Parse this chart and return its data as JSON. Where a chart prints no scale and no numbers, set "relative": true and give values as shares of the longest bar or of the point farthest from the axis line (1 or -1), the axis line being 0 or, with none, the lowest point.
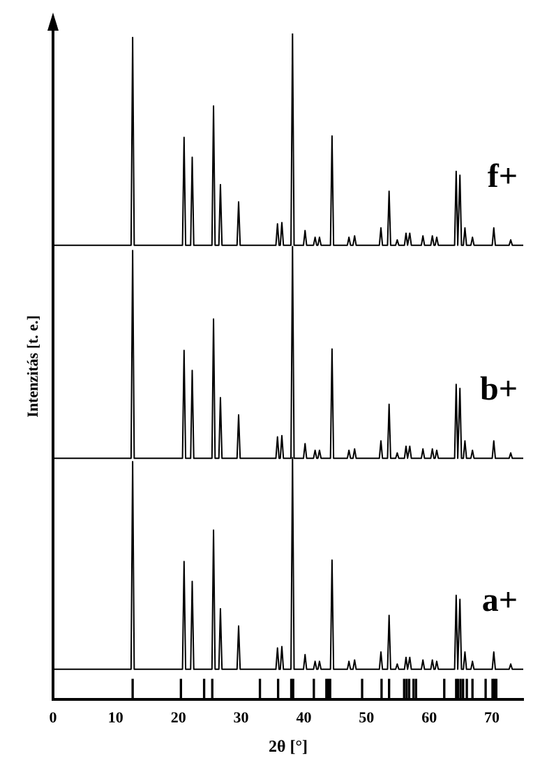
{
  "chart_data": {
    "type": "line",
    "relative": true,
    "xlabel": "2θ [°]",
    "ylabel": "Intenzitás [t. e.]",
    "xlim": [
      0,
      75
    ],
    "xticks": [
      0,
      10,
      20,
      30,
      40,
      50,
      60,
      70
    ],
    "grid": false,
    "legend": false,
    "marker": "none",
    "line_style": "solid",
    "x": [
      0,
      12.45,
      12.7,
      12.95,
      20.65,
      20.9,
      21.15,
      21.95,
      22.2,
      22.45,
      25.35,
      25.6,
      25.85,
      26.45,
      26.7,
      26.95,
      29.35,
      29.6,
      29.85,
      35.55,
      35.8,
      36.05,
      36.25,
      36.5,
      36.75,
      37.95,
      38.2,
      38.45,
      39.95,
      40.2,
      40.45,
      41.55,
      41.8,
      42.05,
      42.25,
      42.5,
      42.75,
      44.25,
      44.5,
      44.75,
      46.95,
      47.2,
      47.45,
      47.85,
      48.1,
      48.35,
      52.05,
      52.3,
      52.55,
      53.35,
      53.6,
      53.85,
      54.65,
      54.9,
      55.15,
      56.05,
      56.3,
      56.55,
      56.65,
      56.9,
      57.15,
      58.75,
      59,
      59.25,
      60.25,
      60.5,
      60.75,
      60.95,
      61.2,
      61.45,
      64.05,
      64.3,
      64.55,
      64.65,
      64.9,
      65.15,
      65.45,
      65.7,
      65.95,
      66.65,
      66.9,
      67.15,
      70.05,
      70.3,
      70.55,
      72.75,
      73,
      73.25,
      75
    ],
    "series": [
      {
        "name": "a+",
        "color": "#000000",
        "values": [
          0.045,
          0.045,
          0.357,
          0.045,
          0.045,
          0.207,
          0.045,
          0.045,
          0.177,
          0.045,
          0.045,
          0.254,
          0.045,
          0.045,
          0.136,
          0.045,
          0.045,
          0.11,
          0.045,
          0.045,
          0.077,
          0.045,
          0.045,
          0.079,
          0.045,
          0.045,
          0.363,
          0.045,
          0.045,
          0.067,
          0.045,
          0.045,
          0.057,
          0.045,
          0.045,
          0.057,
          0.045,
          0.045,
          0.209,
          0.045,
          0.045,
          0.057,
          0.045,
          0.045,
          0.059,
          0.045,
          0.045,
          0.071,
          0.045,
          0.045,
          0.126,
          0.045,
          0.045,
          0.053,
          0.045,
          0.045,
          0.063,
          0.045,
          0.045,
          0.063,
          0.045,
          0.045,
          0.059,
          0.045,
          0.045,
          0.059,
          0.045,
          0.045,
          0.057,
          0.045,
          0.045,
          0.156,
          0.045,
          0.045,
          0.15,
          0.045,
          0.045,
          0.071,
          0.045,
          0.045,
          0.057,
          0.045,
          0.045,
          0.071,
          0.045,
          0.045,
          0.053,
          0.045,
          0.045
        ]
      },
      {
        "name": "b+",
        "color": "#000000",
        "values": [
          0.362,
          0.362,
          0.674,
          0.362,
          0.362,
          0.524,
          0.362,
          0.362,
          0.494,
          0.362,
          0.362,
          0.571,
          0.362,
          0.362,
          0.453,
          0.362,
          0.362,
          0.427,
          0.362,
          0.362,
          0.394,
          0.362,
          0.362,
          0.396,
          0.362,
          0.362,
          0.68,
          0.362,
          0.362,
          0.384,
          0.362,
          0.362,
          0.374,
          0.362,
          0.362,
          0.374,
          0.362,
          0.362,
          0.526,
          0.362,
          0.362,
          0.374,
          0.362,
          0.362,
          0.376,
          0.362,
          0.362,
          0.388,
          0.362,
          0.362,
          0.443,
          0.362,
          0.362,
          0.37,
          0.362,
          0.362,
          0.38,
          0.362,
          0.362,
          0.38,
          0.362,
          0.362,
          0.376,
          0.362,
          0.362,
          0.376,
          0.362,
          0.362,
          0.374,
          0.362,
          0.362,
          0.473,
          0.362,
          0.362,
          0.467,
          0.362,
          0.362,
          0.388,
          0.362,
          0.362,
          0.374,
          0.362,
          0.362,
          0.388,
          0.362,
          0.362,
          0.37,
          0.362,
          0.362
        ]
      },
      {
        "name": "f+",
        "color": "#000000",
        "values": [
          0.682,
          0.682,
          0.994,
          0.682,
          0.682,
          0.844,
          0.682,
          0.682,
          0.814,
          0.682,
          0.682,
          0.891,
          0.682,
          0.682,
          0.773,
          0.682,
          0.682,
          0.747,
          0.682,
          0.682,
          0.714,
          0.682,
          0.682,
          0.716,
          0.682,
          0.682,
          1,
          0.682,
          0.682,
          0.704,
          0.682,
          0.682,
          0.694,
          0.682,
          0.682,
          0.694,
          0.682,
          0.682,
          0.846,
          0.682,
          0.682,
          0.694,
          0.682,
          0.682,
          0.696,
          0.682,
          0.682,
          0.708,
          0.682,
          0.682,
          0.763,
          0.682,
          0.682,
          0.69,
          0.682,
          0.682,
          0.7,
          0.682,
          0.682,
          0.7,
          0.682,
          0.682,
          0.696,
          0.682,
          0.682,
          0.696,
          0.682,
          0.682,
          0.694,
          0.682,
          0.682,
          0.793,
          0.682,
          0.682,
          0.787,
          0.682,
          0.682,
          0.708,
          0.682,
          0.682,
          0.694,
          0.682,
          0.682,
          0.708,
          0.682,
          0.682,
          0.69,
          0.682,
          0.682
        ]
      },
      {
        "type": "bar",
        "color": "#000000",
        "x": [
          12.7,
          20.4,
          24.1,
          25.4,
          33,
          35.9,
          38,
          38.3,
          41.6,
          43.6,
          43.9,
          44.2,
          49.3,
          52.4,
          53.6,
          56,
          56.4,
          56.8,
          57.5,
          57.9,
          62.4,
          64.3,
          64.6,
          65,
          65.4,
          66,
          66.9,
          69,
          70.1,
          70.4,
          70.7
        ],
        "values": [
          0.03,
          0.03,
          0.03,
          0.03,
          0.03,
          0.03,
          0.03,
          0.03,
          0.03,
          0.03,
          0.03,
          0.03,
          0.03,
          0.03,
          0.03,
          0.03,
          0.03,
          0.03,
          0.03,
          0.03,
          0.03,
          0.03,
          0.03,
          0.03,
          0.03,
          0.03,
          0.03,
          0.03,
          0.03,
          0.03,
          0.03
        ]
      }
    ]
  }
}
